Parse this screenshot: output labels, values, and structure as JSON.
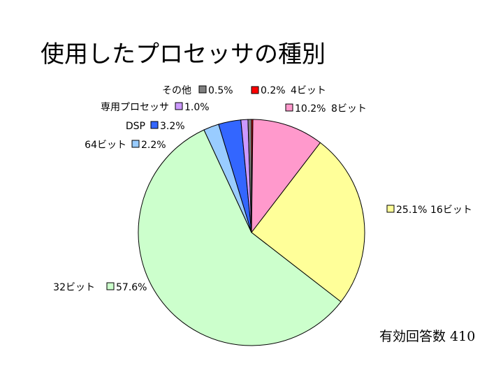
{
  "chart_data": {
    "type": "pie",
    "title": "使用したプロセッサの種別",
    "slices": [
      {
        "name": "4ビット",
        "value": 0.2,
        "value_label": "0.2%",
        "color": "#ff0000"
      },
      {
        "name": "8ビット",
        "value": 10.2,
        "value_label": "10.2%",
        "color": "#ff99cc"
      },
      {
        "name": "16ビット",
        "value": 25.1,
        "value_label": "25.1%",
        "color": "#ffff99"
      },
      {
        "name": "32ビット",
        "value": 57.6,
        "value_label": "57.6%",
        "color": "#ccffcc"
      },
      {
        "name": "64ビット",
        "value": 2.2,
        "value_label": "2.2%",
        "color": "#99ccff"
      },
      {
        "name": "DSP",
        "value": 3.2,
        "value_label": "3.2%",
        "color": "#3366ff"
      },
      {
        "name": "専用プロセッサ",
        "value": 1.0,
        "value_label": "1.0%",
        "color": "#cc99ff"
      },
      {
        "name": "その他",
        "value": 0.5,
        "value_label": "0.5%",
        "color": "#808080"
      }
    ],
    "start": "12 o'clock",
    "direction": "clockwise"
  },
  "footnote": "有効回答数 410"
}
